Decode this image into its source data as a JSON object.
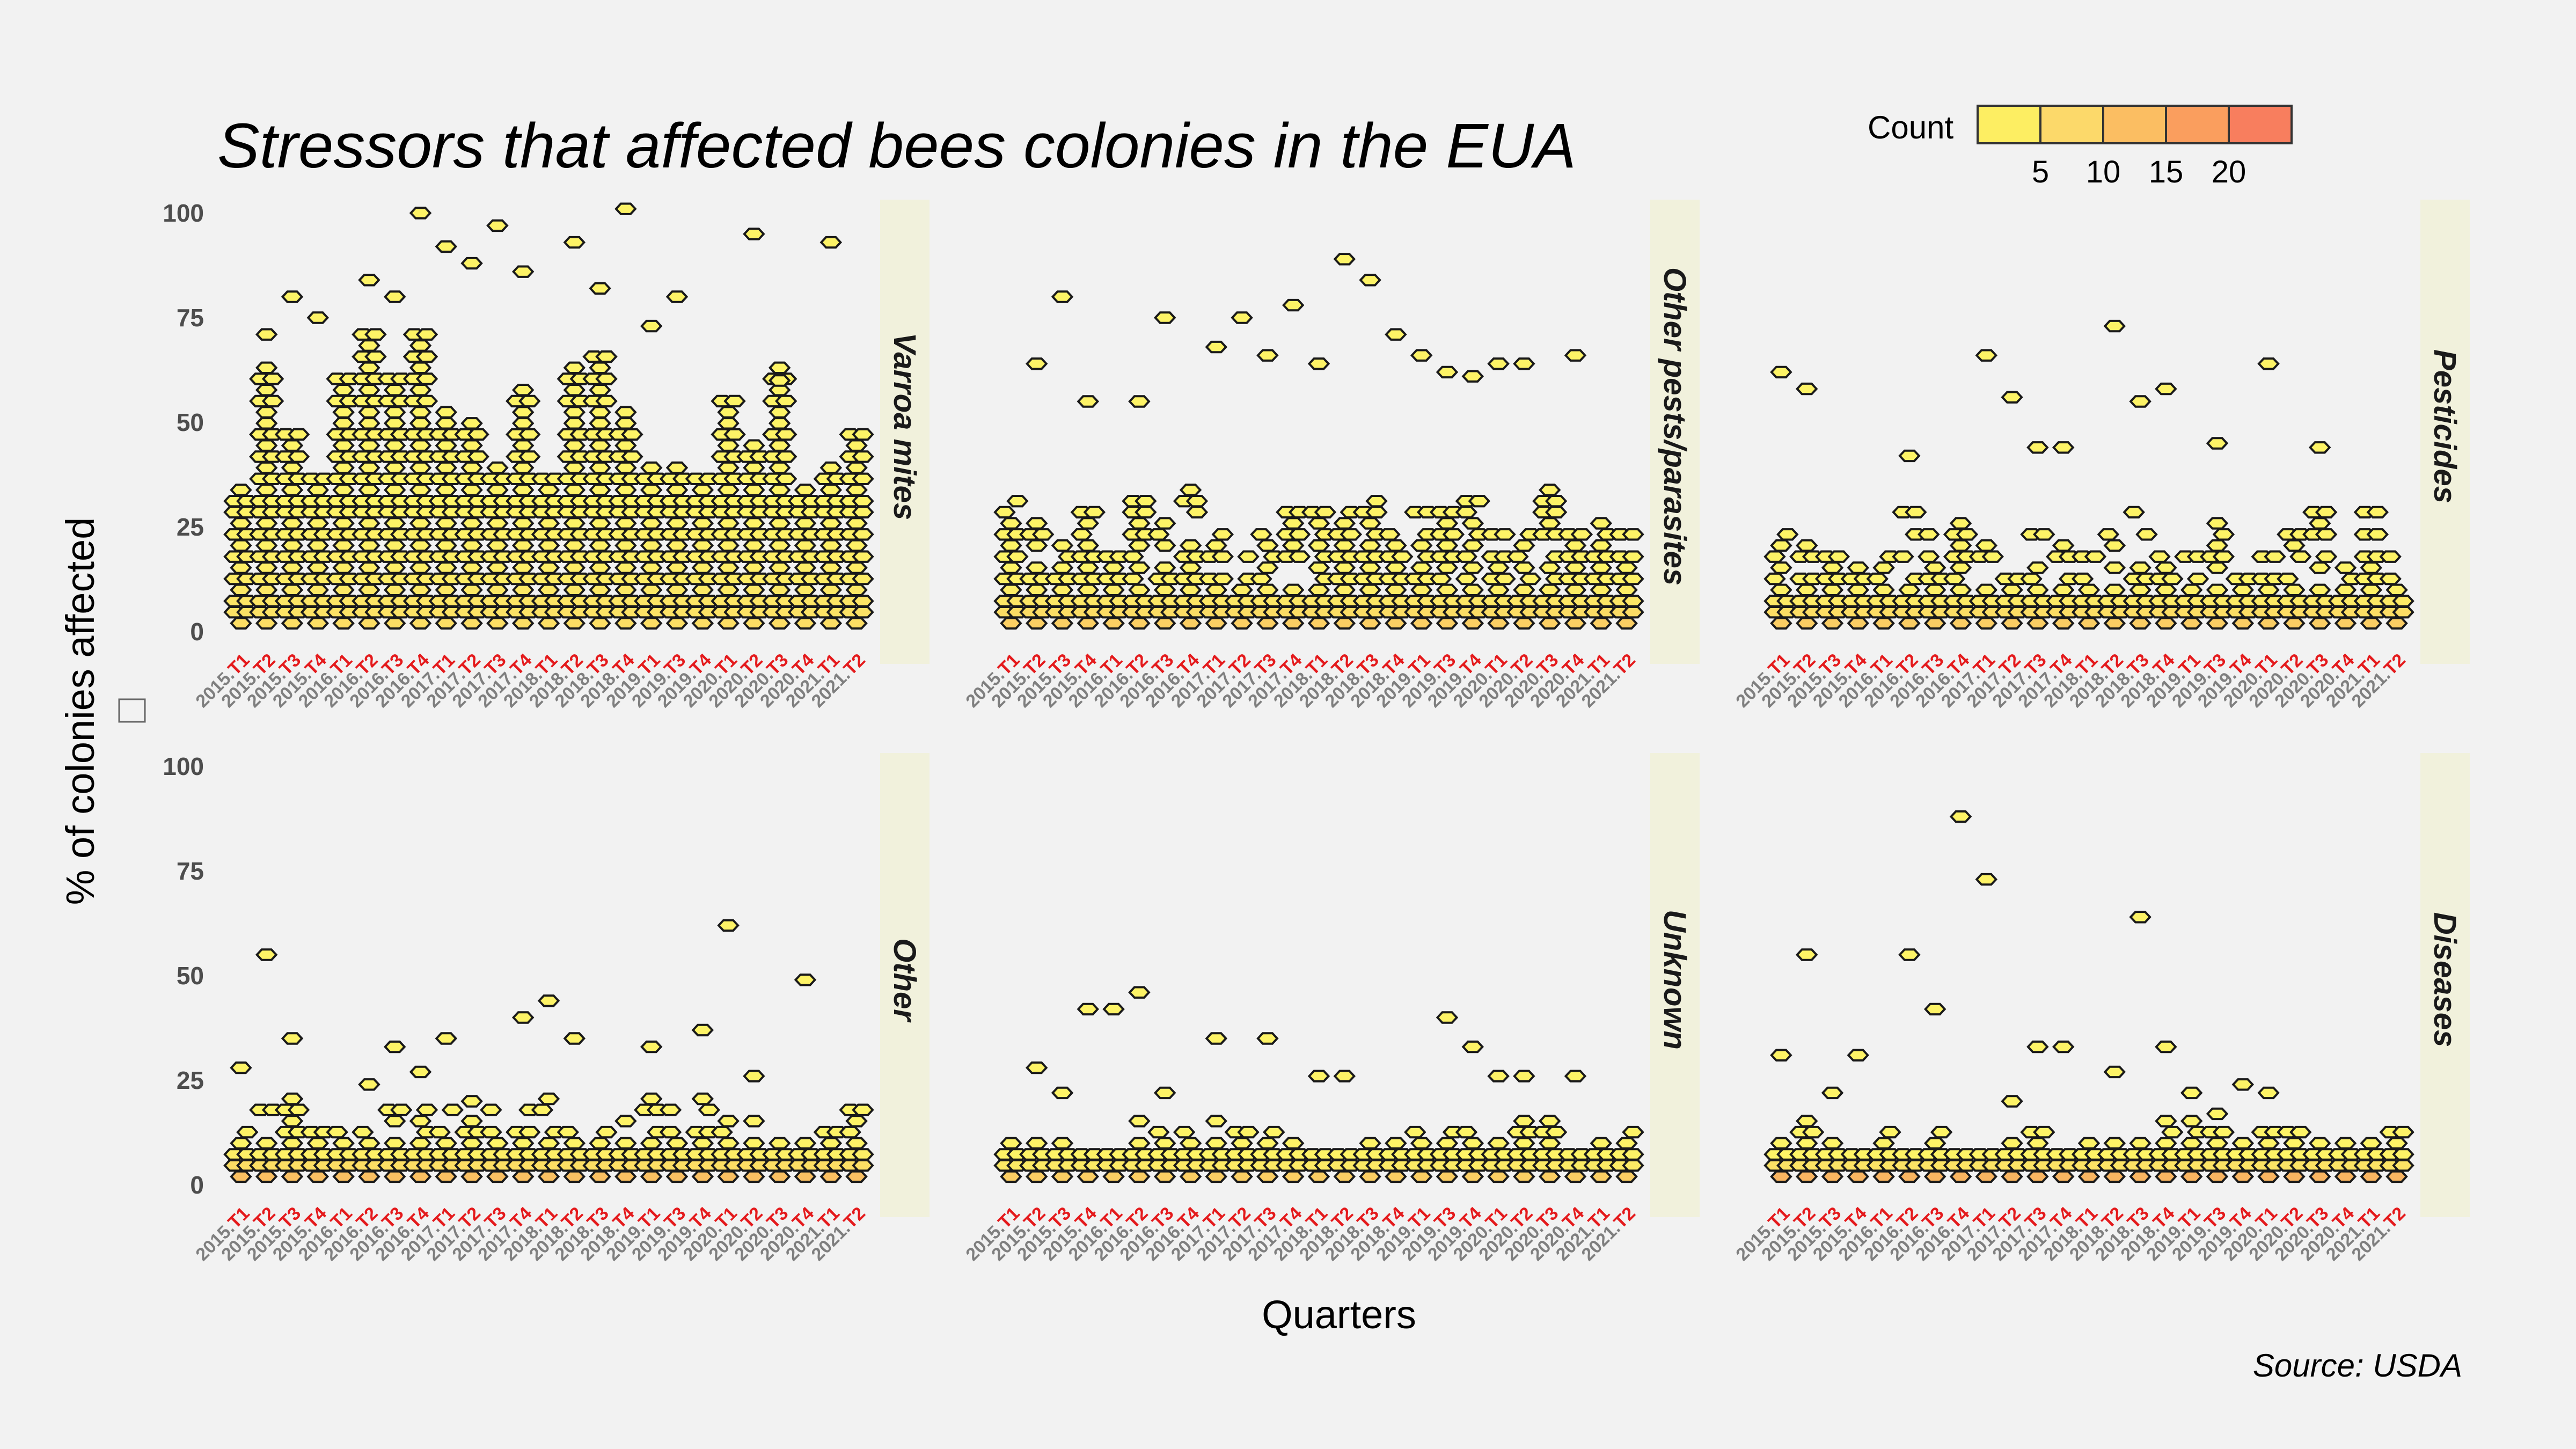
{
  "title": "Stressors that affected bees colonies in the EUA",
  "caption": "Source: USDA",
  "legend": {
    "title": "Count",
    "labels": [
      "5",
      "10",
      "15",
      "20"
    ],
    "colors": [
      "#FDEE62",
      "#FCD96A",
      "#FBBE62",
      "#FA9E5E",
      "#F87E5E"
    ]
  },
  "colors": {
    "background": "#f2f2f2",
    "strip": "#f1f1dc",
    "tick_year": "#7f7f7f",
    "tick_quarter": "#e41a1c",
    "hex_low": "#FDF366",
    "hex_high": "#F57B5C",
    "hex_outline": "#1a1a1a"
  },
  "chart_data": {
    "type": "heatmap",
    "subtype": "hexbin (beeswarm-like), faceted 2x3",
    "xlabel": "Quarters",
    "ylabel": "% of colonies affected",
    "ylim": [
      0,
      100
    ],
    "yticks": [
      "0",
      "25",
      "50",
      "75",
      "100"
    ],
    "quarters": [
      "2015.T1",
      "2015.T2",
      "2015.T3",
      "2015.T4",
      "2016.T1",
      "2016.T2",
      "2016.T3",
      "2016.T4",
      "2017.T1",
      "2017.T2",
      "2017.T3",
      "2017.T4",
      "2018.T1",
      "2018.T2",
      "2018.T3",
      "2018.T4",
      "2019.T1",
      "2019.T3",
      "2019.T4",
      "2020.T1",
      "2020.T2",
      "2020.T3",
      "2020.T4",
      "2021.T1",
      "2021.T2"
    ],
    "tick_parts": [
      {
        "year": "2015.",
        "q": "T1"
      },
      {
        "year": "2015.",
        "q": "T2"
      },
      {
        "year": "2015.",
        "q": "T3"
      },
      {
        "year": "2015.",
        "q": "T4"
      },
      {
        "year": "2016.",
        "q": "T1"
      },
      {
        "year": "2016.",
        "q": "T2"
      },
      {
        "year": "2016.",
        "q": "T3"
      },
      {
        "year": "2016.",
        "q": "T4"
      },
      {
        "year": "2017.",
        "q": "T1"
      },
      {
        "year": "2017.",
        "q": "T2"
      },
      {
        "year": "2017.",
        "q": "T3"
      },
      {
        "year": "2017.",
        "q": "T4"
      },
      {
        "year": "2018.",
        "q": "T1"
      },
      {
        "year": "2018.",
        "q": "T2"
      },
      {
        "year": "2018.",
        "q": "T3"
      },
      {
        "year": "2018.",
        "q": "T4"
      },
      {
        "year": "2019.",
        "q": "T1"
      },
      {
        "year": "2019.",
        "q": "T3"
      },
      {
        "year": "2019.",
        "q": "T4"
      },
      {
        "year": "2020.",
        "q": "T1"
      },
      {
        "year": "2020.",
        "q": "T2"
      },
      {
        "year": "2020.",
        "q": "T3"
      },
      {
        "year": "2020.",
        "q": "T4"
      },
      {
        "year": "2021.",
        "q": "T1"
      },
      {
        "year": "2021.",
        "q": "T2"
      }
    ],
    "facets": [
      {
        "name": "Varroa mites",
        "typical_max": 60,
        "median": 25,
        "count_peak": 4,
        "density": 1.0,
        "outliers": [
          [
            1,
            71
          ],
          [
            2,
            80
          ],
          [
            3,
            75
          ],
          [
            5,
            84
          ],
          [
            6,
            80
          ],
          [
            7,
            100
          ],
          [
            8,
            92
          ],
          [
            9,
            88
          ],
          [
            10,
            97
          ],
          [
            11,
            86
          ],
          [
            13,
            93
          ],
          [
            14,
            82
          ],
          [
            15,
            101
          ],
          [
            16,
            73
          ],
          [
            17,
            80
          ],
          [
            20,
            95
          ],
          [
            21,
            60
          ],
          [
            23,
            93
          ]
        ]
      },
      {
        "name": "Other pests/parasites",
        "typical_max": 30,
        "median": 10,
        "count_peak": 8,
        "density": 0.8,
        "outliers": [
          [
            1,
            64
          ],
          [
            2,
            80
          ],
          [
            3,
            55
          ],
          [
            5,
            55
          ],
          [
            6,
            75
          ],
          [
            8,
            68
          ],
          [
            9,
            75
          ],
          [
            10,
            66
          ],
          [
            11,
            78
          ],
          [
            12,
            64
          ],
          [
            13,
            89
          ],
          [
            14,
            84
          ],
          [
            15,
            71
          ],
          [
            16,
            66
          ],
          [
            17,
            62
          ],
          [
            18,
            61
          ],
          [
            19,
            64
          ],
          [
            20,
            64
          ],
          [
            22,
            66
          ]
        ]
      },
      {
        "name": "Pesticides",
        "typical_max": 25,
        "median": 8,
        "count_peak": 9,
        "density": 0.65,
        "outliers": [
          [
            0,
            62
          ],
          [
            1,
            58
          ],
          [
            5,
            42
          ],
          [
            8,
            66
          ],
          [
            9,
            56
          ],
          [
            10,
            44
          ],
          [
            11,
            44
          ],
          [
            13,
            73
          ],
          [
            14,
            55
          ],
          [
            15,
            58
          ],
          [
            17,
            45
          ],
          [
            19,
            64
          ],
          [
            21,
            44
          ]
        ]
      },
      {
        "name": "Other",
        "typical_max": 18,
        "median": 5,
        "count_peak": 14,
        "density": 0.55,
        "outliers": [
          [
            0,
            28
          ],
          [
            1,
            55
          ],
          [
            2,
            35
          ],
          [
            5,
            24
          ],
          [
            6,
            33
          ],
          [
            7,
            27
          ],
          [
            8,
            35
          ],
          [
            9,
            20
          ],
          [
            11,
            40
          ],
          [
            12,
            44
          ],
          [
            13,
            35
          ],
          [
            16,
            33
          ],
          [
            18,
            37
          ],
          [
            19,
            62
          ],
          [
            20,
            26
          ],
          [
            22,
            49
          ]
        ]
      },
      {
        "name": "Unknown",
        "typical_max": 14,
        "median": 5,
        "count_peak": 12,
        "density": 0.5,
        "outliers": [
          [
            1,
            28
          ],
          [
            2,
            22
          ],
          [
            3,
            42
          ],
          [
            4,
            42
          ],
          [
            5,
            46
          ],
          [
            6,
            22
          ],
          [
            8,
            35
          ],
          [
            10,
            35
          ],
          [
            12,
            26
          ],
          [
            13,
            26
          ],
          [
            17,
            40
          ],
          [
            18,
            33
          ],
          [
            19,
            26
          ],
          [
            20,
            26
          ],
          [
            22,
            26
          ]
        ]
      },
      {
        "name": "Diseases",
        "typical_max": 14,
        "median": 5,
        "count_peak": 20,
        "density": 0.55,
        "outliers": [
          [
            0,
            31
          ],
          [
            1,
            55
          ],
          [
            2,
            22
          ],
          [
            3,
            31
          ],
          [
            5,
            55
          ],
          [
            6,
            42
          ],
          [
            7,
            88
          ],
          [
            8,
            73
          ],
          [
            9,
            20
          ],
          [
            10,
            33
          ],
          [
            11,
            33
          ],
          [
            13,
            27
          ],
          [
            14,
            64
          ],
          [
            15,
            33
          ],
          [
            16,
            22
          ],
          [
            17,
            17
          ],
          [
            18,
            24
          ],
          [
            19,
            22
          ]
        ]
      }
    ]
  }
}
